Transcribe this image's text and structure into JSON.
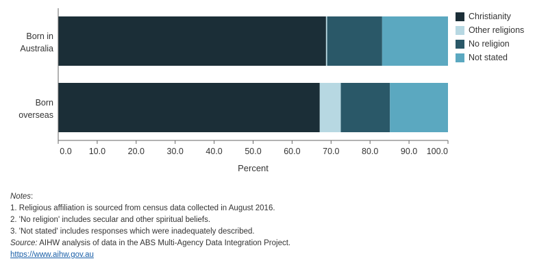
{
  "chart_data": {
    "type": "bar",
    "orientation": "horizontal",
    "stacked": true,
    "categories": [
      "Born in\nAustralia",
      "Born\noverseas"
    ],
    "series": [
      {
        "name": "Christianity",
        "values": [
          68.7,
          67.1
        ],
        "color": "#1b2e37"
      },
      {
        "name": "Other religions",
        "values": [
          0.3,
          5.4
        ],
        "color": "#b7d8e2"
      },
      {
        "name": "No religion",
        "values": [
          14.1,
          12.6
        ],
        "color": "#2a5868"
      },
      {
        "name": "Not stated",
        "values": [
          16.9,
          14.9
        ],
        "color": "#5ba8c0"
      }
    ],
    "xlabel": "Percent",
    "xlim": [
      0,
      100
    ],
    "xticks": [
      "0.0",
      "10.0",
      "20.0",
      "30.0",
      "40.0",
      "50.0",
      "60.0",
      "70.0",
      "80.0",
      "90.0",
      "100.0"
    ],
    "grid": false,
    "legend_position": "top-right"
  },
  "notes": {
    "heading": "Notes",
    "colon": ":",
    "lines": [
      "1. Religious affiliation is sourced from census data collected in August 2016.",
      "2. 'No religion' includes secular and other spiritual beliefs.",
      "3. 'Not stated' includes responses which were inadequately described."
    ],
    "source_label": "Source:",
    "source_text": " AIHW analysis of data in the ABS Multi-Agency Data Integration Project.",
    "link": "https://www.aihw.gov.au"
  }
}
